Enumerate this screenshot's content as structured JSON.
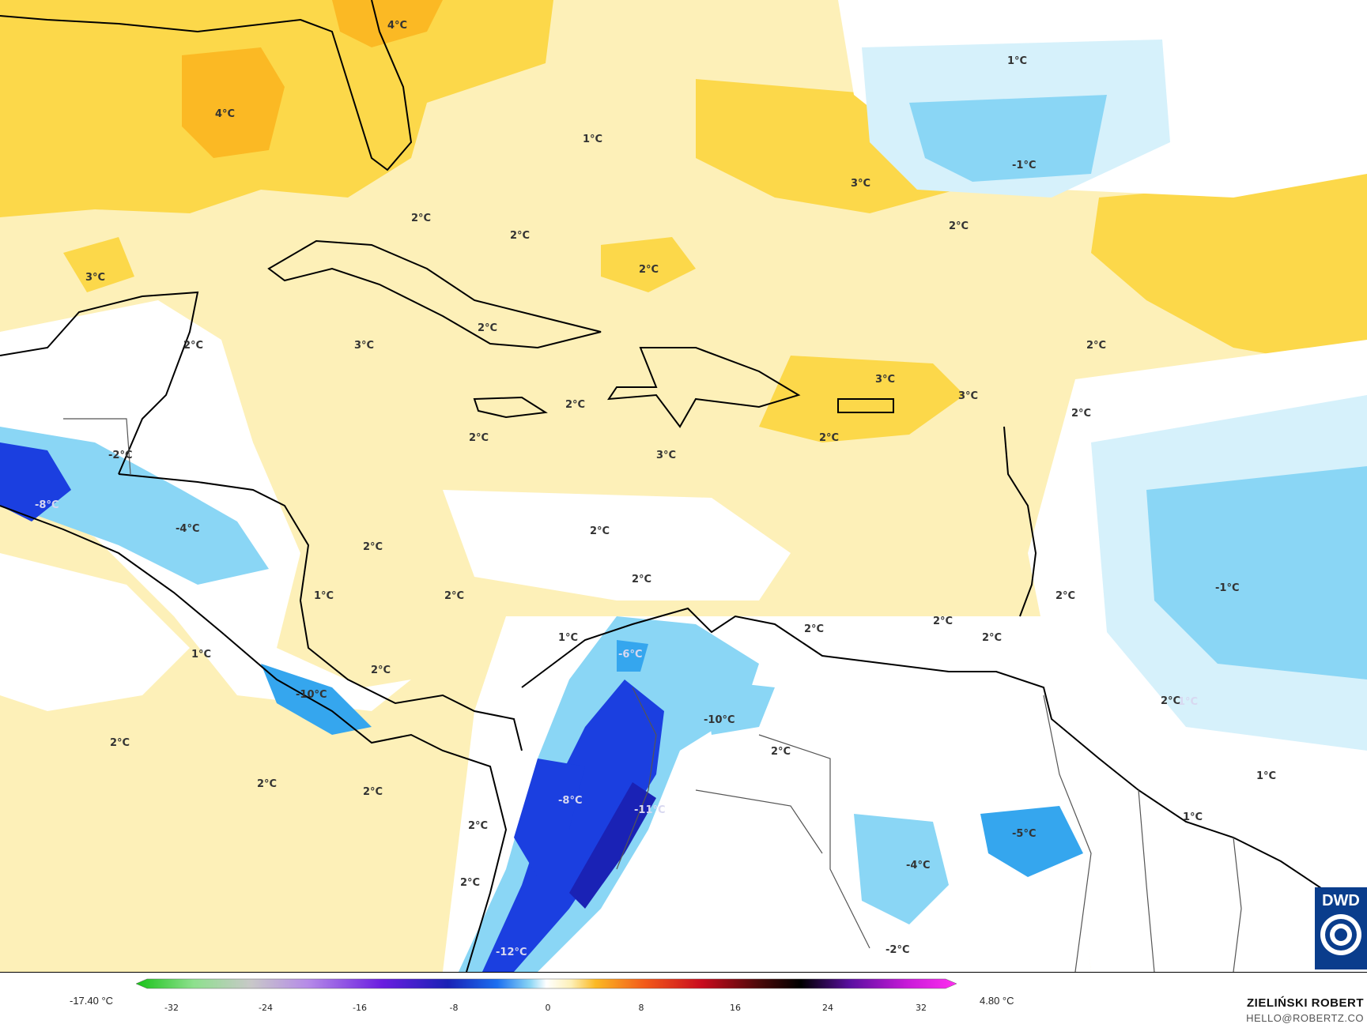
{
  "legend": {
    "min_value": "-17.40 °C",
    "max_value": "4.80 °C",
    "ticks": [
      "-32",
      "-24",
      "-16",
      "-8",
      "0",
      "8",
      "16",
      "24",
      "32"
    ]
  },
  "credits": {
    "author": "ZIELIŃSKI ROBERT",
    "email": "HELLO@ROBERTZ.CO"
  },
  "logo": {
    "text": "DWD"
  },
  "labels": [
    {
      "text": "4°C"
    },
    {
      "text": "4°C"
    },
    {
      "text": "1°C"
    },
    {
      "text": "3°C"
    },
    {
      "text": "-1°C"
    },
    {
      "text": "2°C"
    },
    {
      "text": "2°C"
    },
    {
      "text": "2°C"
    },
    {
      "text": "1°C"
    },
    {
      "text": "2°C"
    },
    {
      "text": "3°C"
    },
    {
      "text": "2°C"
    },
    {
      "text": "3°C"
    },
    {
      "text": "2°C"
    },
    {
      "text": "2°C"
    },
    {
      "text": "3°C"
    },
    {
      "text": "3°C"
    },
    {
      "text": "2°C"
    },
    {
      "text": "2°C"
    },
    {
      "text": "2°C"
    },
    {
      "text": "2°C"
    },
    {
      "text": "3°C"
    },
    {
      "text": "-2°C"
    },
    {
      "text": "-8°C"
    },
    {
      "text": "-4°C"
    },
    {
      "text": "2°C"
    },
    {
      "text": "2°C"
    },
    {
      "text": "2°C"
    },
    {
      "text": "2°C"
    },
    {
      "text": "1°C"
    },
    {
      "text": "2°C"
    },
    {
      "text": "-1°C"
    },
    {
      "text": "1°C"
    },
    {
      "text": "1°C"
    },
    {
      "text": "-6°C"
    },
    {
      "text": "2°C"
    },
    {
      "text": "2°C"
    },
    {
      "text": "2°C"
    },
    {
      "text": "2°C"
    },
    {
      "text": "1°C"
    },
    {
      "text": "2°C"
    },
    {
      "text": "-10°C"
    },
    {
      "text": "-10°C"
    },
    {
      "text": "2°C"
    },
    {
      "text": "2°C"
    },
    {
      "text": "1°C"
    },
    {
      "text": "2°C"
    },
    {
      "text": "2°C"
    },
    {
      "text": "-8°C"
    },
    {
      "text": "-11°C"
    },
    {
      "text": "2°C"
    },
    {
      "text": "1°C"
    },
    {
      "text": "-5°C"
    },
    {
      "text": "-4°C"
    },
    {
      "text": "2°C"
    },
    {
      "text": "-12°C"
    },
    {
      "text": "-2°C"
    }
  ],
  "colors": {
    "ocean_pale_yellow": "#fdf0b8",
    "warm_yellow": "#fcd84a",
    "warm_orange": "#fbb924",
    "neutral_white": "#ffffff",
    "cold_pale_blue": "#d6f1fb",
    "cold_light_blue": "#8ad6f5",
    "cold_blue": "#35a6ee",
    "cold_deep_blue": "#1b3fe0",
    "cold_darkest": "#1a22b5",
    "coastline": "#000000",
    "border": "#555555"
  }
}
